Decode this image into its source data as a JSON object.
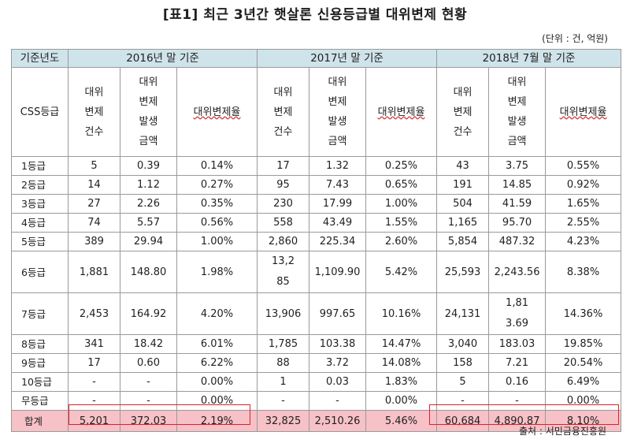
{
  "title": "[표1] 최근 3년간 햇살론 신용등급별 대위변제 현황",
  "unit": "(단위 : 건, 억원)",
  "source": "출처 : 서민금융진흥원",
  "header": {
    "corner_top": "기준년도",
    "corner_bottom": "CSS등급",
    "periods": [
      "2016년 말 기준",
      "2017년 말 기준",
      "2018년 7월 말 기준"
    ],
    "count": "대위\n변제\n건수",
    "amount": "대위\n변제\n발생\n금액",
    "rate": "대위변제율"
  },
  "rows": [
    {
      "grade": "1등급",
      "c1": "5",
      "a1": "0.39",
      "r1": "0.14%",
      "c2": "17",
      "a2": "1.32",
      "r2": "0.25%",
      "c3": "43",
      "a3": "3.75",
      "r3": "0.55%"
    },
    {
      "grade": "2등급",
      "c1": "14",
      "a1": "1.12",
      "r1": "0.27%",
      "c2": "95",
      "a2": "7.43",
      "r2": "0.65%",
      "c3": "191",
      "a3": "14.85",
      "r3": "0.92%"
    },
    {
      "grade": "3등급",
      "c1": "27",
      "a1": "2.26",
      "r1": "0.35%",
      "c2": "230",
      "a2": "17.99",
      "r2": "1.00%",
      "c3": "504",
      "a3": "41.59",
      "r3": "1.65%"
    },
    {
      "grade": "4등급",
      "c1": "74",
      "a1": "5.57",
      "r1": "0.56%",
      "c2": "558",
      "a2": "43.49",
      "r2": "1.55%",
      "c3": "1,165",
      "a3": "95.70",
      "r3": "2.55%"
    },
    {
      "grade": "5등급",
      "c1": "389",
      "a1": "29.94",
      "r1": "1.00%",
      "c2": "2,860",
      "a2": "225.34",
      "r2": "2.60%",
      "c3": "5,854",
      "a3": "487.32",
      "r3": "4.23%"
    },
    {
      "grade": "6등급",
      "c1": "1,881",
      "a1": "148.80",
      "r1": "1.98%",
      "c2": "13,285",
      "a2": "1,109.90",
      "r2": "5.42%",
      "c3": "25,593",
      "a3": "2,243.56",
      "r3": "8.38%"
    },
    {
      "grade": "7등급",
      "c1": "2,453",
      "a1": "164.92",
      "r1": "4.20%",
      "c2": "13,906",
      "a2": "997.65",
      "r2": "10.16%",
      "c3": "24,131",
      "a3": "1,813.69",
      "r3": "14.36%"
    },
    {
      "grade": "8등급",
      "c1": "341",
      "a1": "18.42",
      "r1": "6.01%",
      "c2": "1,785",
      "a2": "103.38",
      "r2": "14.47%",
      "c3": "3,040",
      "a3": "183.03",
      "r3": "19.85%"
    },
    {
      "grade": "9등급",
      "c1": "17",
      "a1": "0.60",
      "r1": "6.22%",
      "c2": "88",
      "a2": "3.72",
      "r2": "14.08%",
      "c3": "158",
      "a3": "7.21",
      "r3": "20.54%"
    },
    {
      "grade": "10등급",
      "c1": "-",
      "a1": "-",
      "r1": "0.00%",
      "c2": "1",
      "a2": "0.03",
      "r2": "1.83%",
      "c3": "5",
      "a3": "0.16",
      "r3": "6.49%"
    },
    {
      "grade": "무등급",
      "c1": "-",
      "a1": "-",
      "r1": "0.00%",
      "c2": "-",
      "a2": "-",
      "r2": "0.00%",
      "c3": "-",
      "a3": "-",
      "r3": "0.00%"
    }
  ],
  "total": {
    "grade": "합계",
    "c1": "5,201",
    "a1": "372.03",
    "r1": "2.19%",
    "c2": "32,825",
    "a2": "2,510.26",
    "r2": "5.46%",
    "c3": "60,684",
    "a3": "4,890.87",
    "r3": "8.10%"
  }
}
